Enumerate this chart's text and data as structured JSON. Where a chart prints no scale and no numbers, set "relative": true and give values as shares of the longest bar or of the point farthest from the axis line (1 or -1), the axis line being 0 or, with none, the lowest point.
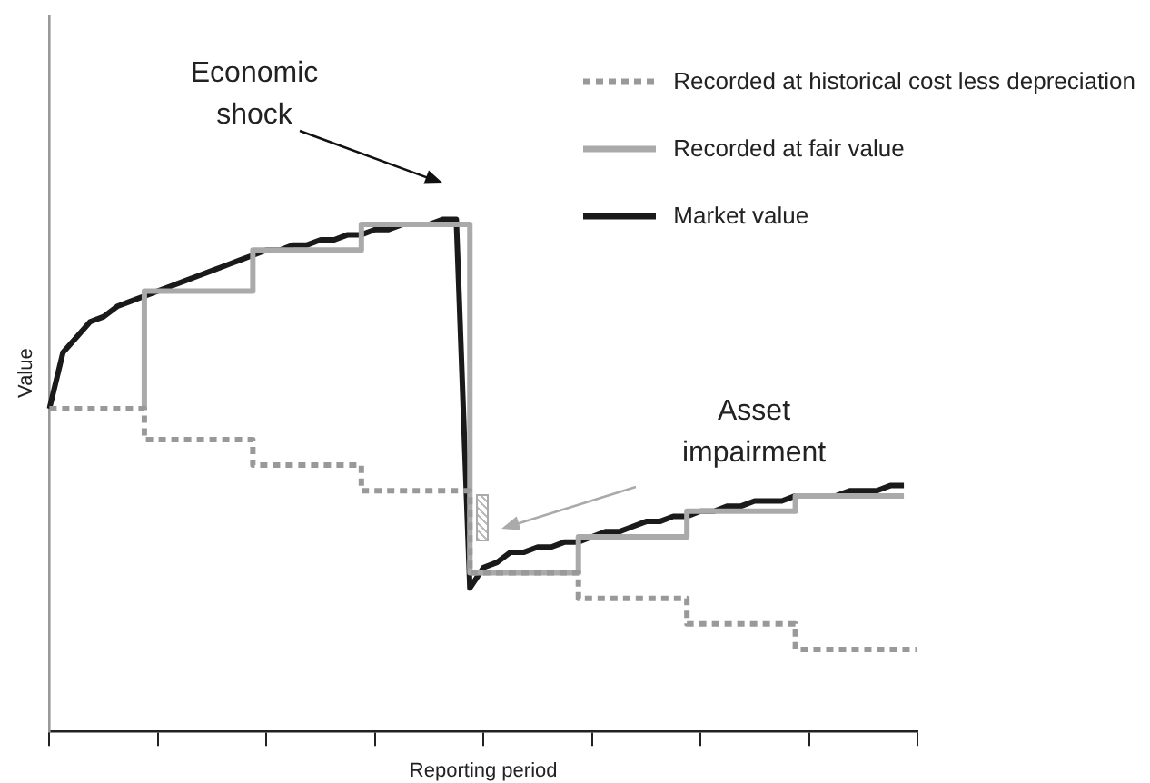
{
  "chart_data": {
    "type": "line",
    "relative": true,
    "xlabel": "Reporting period",
    "ylabel": "Value",
    "categories": [
      null,
      null,
      null,
      null,
      null,
      null,
      null,
      null,
      null,
      null,
      null,
      null,
      null,
      null,
      null,
      null,
      null,
      null,
      null,
      null,
      null,
      null,
      null,
      null,
      null,
      null,
      null,
      null,
      null,
      null,
      null,
      null,
      null,
      null,
      null,
      null,
      null,
      null,
      null,
      null,
      null,
      null,
      null,
      null,
      null,
      null,
      null,
      null,
      null,
      null,
      null,
      null,
      null,
      null,
      null,
      null,
      null,
      null,
      null,
      null,
      null,
      null,
      null,
      null,
      null
    ],
    "grid": false,
    "legend": "top right",
    "marker": "none",
    "series": [
      {
        "name": "Recorded at historical cost less depreciation",
        "type": "step",
        "color": "#999999",
        "line_style": "dotted",
        "values": [
          0.63,
          0.63,
          0.63,
          0.63,
          0.63,
          0.63,
          0.63,
          0.63,
          0.57,
          0.57,
          0.57,
          0.57,
          0.57,
          0.57,
          0.57,
          0.57,
          0.52,
          0.52,
          0.52,
          0.52,
          0.52,
          0.52,
          0.52,
          0.52,
          0.47,
          0.47,
          0.47,
          0.47,
          0.47,
          0.47,
          0.47,
          0.47,
          0.31,
          0.31,
          0.31,
          0.31,
          0.31,
          0.31,
          0.31,
          0.31,
          0.26,
          0.26,
          0.26,
          0.26,
          0.26,
          0.26,
          0.26,
          0.26,
          0.21,
          0.21,
          0.21,
          0.21,
          0.21,
          0.21,
          0.21,
          0.21,
          0.16,
          0.16,
          0.16,
          0.16,
          0.16,
          0.16,
          0.16,
          0.16,
          0.16
        ]
      },
      {
        "name": "Recorded at fair value",
        "type": "step",
        "color": "#aaaaaa",
        "line_style": "solid",
        "values": [
          null,
          null,
          null,
          null,
          null,
          null,
          null,
          0.63,
          0.86,
          0.86,
          0.86,
          0.86,
          0.86,
          0.86,
          0.86,
          0.86,
          0.94,
          0.94,
          0.94,
          0.94,
          0.94,
          0.94,
          0.94,
          0.94,
          0.99,
          0.99,
          0.99,
          0.99,
          0.99,
          0.99,
          0.99,
          0.99,
          0.31,
          0.31,
          0.31,
          0.31,
          0.31,
          0.31,
          0.31,
          0.31,
          0.38,
          0.38,
          0.38,
          0.38,
          0.38,
          0.38,
          0.38,
          0.38,
          0.43,
          0.43,
          0.43,
          0.43,
          0.43,
          0.43,
          0.43,
          0.43,
          0.46,
          0.46,
          0.46,
          0.46,
          0.46,
          0.46,
          0.46,
          0.46,
          null
        ]
      },
      {
        "name": "Market value",
        "color": "#1a1a1a",
        "line_style": "solid",
        "values": [
          0.63,
          0.74,
          0.77,
          0.8,
          0.81,
          0.83,
          0.84,
          0.85,
          0.86,
          0.87,
          0.88,
          0.89,
          0.9,
          0.91,
          0.92,
          0.93,
          0.94,
          0.94,
          0.95,
          0.95,
          0.96,
          0.96,
          0.97,
          0.97,
          0.98,
          0.98,
          0.99,
          0.99,
          0.99,
          1,
          1,
          0.28,
          0.32,
          0.33,
          0.35,
          0.35,
          0.36,
          0.36,
          0.37,
          0.37,
          0.38,
          0.39,
          0.39,
          0.4,
          0.41,
          0.41,
          0.42,
          0.42,
          0.43,
          0.43,
          0.44,
          0.44,
          0.45,
          0.45,
          0.45,
          0.46,
          0.46,
          0.46,
          0.46,
          0.47,
          0.47,
          0.47,
          0.48,
          0.48,
          null
        ]
      }
    ],
    "annotations": [
      "Economic shock",
      "Asset impairment"
    ]
  }
}
